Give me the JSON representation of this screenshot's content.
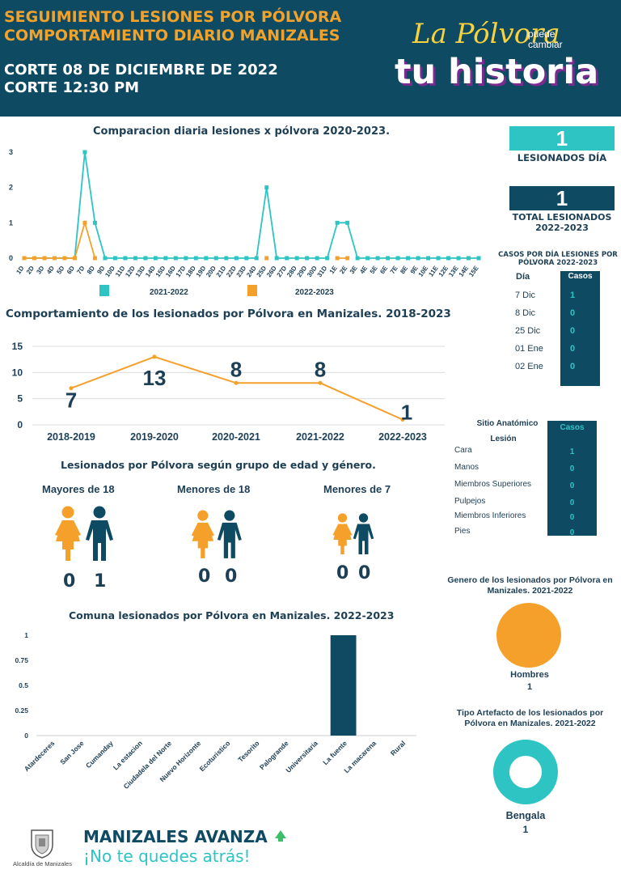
{
  "header": {
    "title_line1": "SEGUIMIENTO LESIONES POR PÓLVORA",
    "title_line2": "COMPORTAMIENTO DIARIO MANIZALES",
    "cut_date": "CORTE 08 DE DICIEMBRE DE 2022",
    "cut_time": "CORTE 12:30 PM",
    "logo_line1": "La Pólvora",
    "logo_small": "puede cambiar",
    "logo_line2": "tu historia"
  },
  "colors": {
    "navy": "#0f4a63",
    "teal": "#2ec4c4",
    "orange": "#f5a02b",
    "text": "#1d3f55"
  },
  "daily_chart_title": "Comparacion diaria  lesiones x pólvora 2020-2023.",
  "trend_chart_title": "Comportamiento de los lesionados por Pólvora en Manizales. 2018-2023",
  "comuna_chart_title": "Comuna lesionados por Pólvora en Manizales. 2022-2023",
  "chart_data": [
    {
      "type": "line",
      "title": "Comparacion diaria  lesiones x pólvora 2020-2023.",
      "x": [
        "1D",
        "2D",
        "3D",
        "4D",
        "5D",
        "6D",
        "7D",
        "8D",
        "9D",
        "10D",
        "11D",
        "12D",
        "13D",
        "14D",
        "15D",
        "16D",
        "17D",
        "18D",
        "19D",
        "20D",
        "21D",
        "22D",
        "23D",
        "24D",
        "25D",
        "26D",
        "27D",
        "28D",
        "29D",
        "30D",
        "31D",
        "1E",
        "2E",
        "3E",
        "4E",
        "5E",
        "6E",
        "7E",
        "8E",
        "9E",
        "10E",
        "11E",
        "12E",
        "13E",
        "14E",
        "15E"
      ],
      "ylim": [
        0,
        3
      ],
      "yticks": [
        0,
        1,
        2,
        3
      ],
      "series": [
        {
          "name": "2021-2022",
          "color": "#2ec4c4",
          "values": [
            0,
            0,
            0,
            0,
            0,
            0,
            3,
            1,
            0,
            0,
            0,
            0,
            0,
            0,
            0,
            0,
            0,
            0,
            0,
            0,
            0,
            0,
            0,
            0,
            2,
            0,
            0,
            0,
            0,
            0,
            0,
            1,
            1,
            0,
            0,
            0,
            0,
            0,
            0,
            0,
            0,
            0,
            0,
            0,
            0,
            0
          ]
        },
        {
          "name": "2022-2023",
          "color": "#f5a02b",
          "values": [
            0,
            0,
            0,
            0,
            0,
            0,
            1,
            0,
            null,
            null,
            null,
            null,
            null,
            null,
            null,
            null,
            null,
            null,
            null,
            null,
            null,
            null,
            null,
            null,
            0,
            null,
            null,
            null,
            null,
            null,
            null,
            0,
            0,
            null,
            null,
            null,
            null,
            null,
            null,
            null,
            null,
            null,
            null,
            null,
            null,
            null
          ]
        }
      ],
      "legend": "bottom"
    },
    {
      "type": "line",
      "title": "Comportamiento de los lesionados por Pólvora en Manizales. 2018-2023",
      "categories": [
        "2018-2019",
        "2019-2020",
        "2020-2021",
        "2021-2022",
        "2022-2023"
      ],
      "values": [
        7,
        13,
        8,
        8,
        1
      ],
      "data_labels": [
        "7",
        "13",
        "8",
        "8",
        "1"
      ],
      "ylim": [
        0,
        15
      ],
      "yticks": [
        0,
        5,
        10,
        15
      ],
      "color": "#f5a02b",
      "grid": true
    },
    {
      "type": "bar",
      "title": "Comuna lesionados por Pólvora en Manizales. 2022-2023",
      "categories": [
        "Atardeceres",
        "San Jose",
        "Cumanday",
        "La estacion",
        "Ciudadela del Norte",
        "Nuevo Horizonte",
        "Ecoturistico",
        "Tesorito",
        "Palogrande",
        "Universitaria",
        "La fuente",
        "La macarena",
        "Rural"
      ],
      "values": [
        0,
        0,
        0,
        0,
        0,
        0,
        0,
        0,
        0,
        0,
        1,
        0,
        0
      ],
      "ylim": [
        0,
        1
      ],
      "yticks": [
        "0",
        "0.25",
        "0.5",
        "0.75",
        "1"
      ],
      "color": "#0f4a63"
    },
    {
      "type": "pie",
      "title": "Genero de los lesionados por Pólvora en Manizales. 2021-2022",
      "labels": [
        "Hombres"
      ],
      "values": [
        1
      ],
      "colors": [
        "#f5a02b"
      ]
    },
    {
      "type": "pie",
      "title": "Tipo Artefacto de los lesionados por Pólvora en Manizales. 2021-2022",
      "labels": [
        "Bengala"
      ],
      "values": [
        1
      ],
      "colors": [
        "#2ec4c4"
      ]
    }
  ],
  "kpis": {
    "day_value": "1",
    "day_label": "LESIONADOS DÍA",
    "total_value": "1",
    "total_label": "TOTAL LESIONADOS 2022-2023"
  },
  "cases_table": {
    "title": "CASOS POR DÍA LESIONES POR PÓLVORA 2022-2023",
    "col_day": "Día",
    "col_cases": "Casos",
    "rows": [
      {
        "day": "7 Dic",
        "cases": "1"
      },
      {
        "day": "8 Dic",
        "cases": "0"
      },
      {
        "day": "25 Dic",
        "cases": "0"
      },
      {
        "day": "01 Ene",
        "cases": "0"
      },
      {
        "day": "02 Ene",
        "cases": "0"
      }
    ]
  },
  "site_table": {
    "col_site_line1": "Sitio Anatómico",
    "col_site_line2": "Lesión",
    "col_cases": "Casos",
    "rows": [
      {
        "site": "Cara",
        "cases": "1"
      },
      {
        "site": "Manos",
        "cases": "0"
      },
      {
        "site": "Miembros Superiores",
        "cases": "0"
      },
      {
        "site": "Pulpejos",
        "cases": "0"
      },
      {
        "site": "Miembros Inferiores",
        "cases": "0"
      },
      {
        "site": "Pies",
        "cases": "0"
      }
    ]
  },
  "age_gender": {
    "title": "Lesionados por Pólvora según grupo de edad y género.",
    "groups": [
      {
        "label": "Mayores de 18",
        "female": "0",
        "male": "1"
      },
      {
        "label": "Menores de 18",
        "female": "0",
        "male": "0"
      },
      {
        "label": "Menores de 7",
        "female": "0",
        "male": "0"
      }
    ]
  },
  "gender_pie": {
    "title": "Genero de los lesionados por Pólvora en Manizales. 2021-2022",
    "label": "Hombres",
    "value": "1"
  },
  "artifact_pie": {
    "title": "Tipo Artefacto de los lesionados por Pólvora en Manizales. 2021-2022",
    "label": "Bengala",
    "value": "1"
  },
  "footer": {
    "alcaldia": "Alcaldía de Manizales",
    "brand_a": "MANIZALES ",
    "brand_b": "AVANZA",
    "slogan": "¡No te quedes atrás!"
  }
}
